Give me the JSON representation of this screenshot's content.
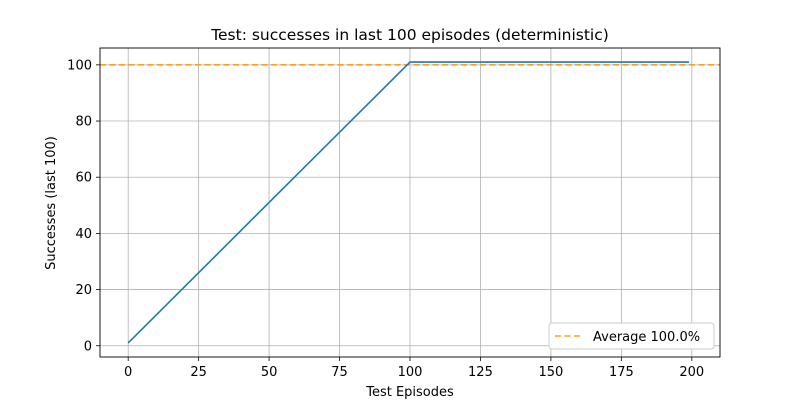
{
  "chart_data": {
    "type": "line",
    "title": "Test: successes in last 100 episodes (deterministic)",
    "xlabel": "Test Episodes",
    "ylabel": "Successes (last 100)",
    "xlim": [
      -10,
      210
    ],
    "ylim": [
      -4,
      106
    ],
    "xticks": [
      0,
      25,
      50,
      75,
      100,
      125,
      150,
      175,
      200
    ],
    "yticks": [
      0,
      20,
      40,
      60,
      80,
      100
    ],
    "grid": true,
    "legend_position": "lower-right",
    "series": [
      {
        "style": "solid",
        "color": "#1f77b4",
        "x": [
          0,
          100,
          199
        ],
        "y": [
          1,
          101,
          101
        ]
      }
    ],
    "reference_lines": [
      {
        "name": "Average 100.0%",
        "orientation": "horizontal",
        "value": 100,
        "style": "dashed",
        "color": "#ff9f1a"
      }
    ]
  }
}
